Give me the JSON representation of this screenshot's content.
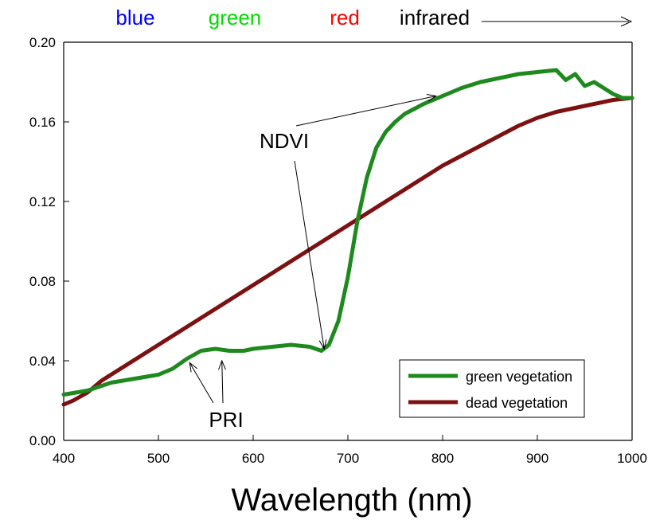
{
  "chart_data": {
    "type": "line",
    "title": "",
    "xlabel": "Wavelength (nm)",
    "ylabel": "",
    "xlim": [
      400,
      1000
    ],
    "ylim": [
      0.0,
      0.2
    ],
    "x_ticks": [
      "400",
      "500",
      "600",
      "700",
      "800",
      "900",
      "1000"
    ],
    "y_ticks": [
      "0.00",
      "0.04",
      "0.08",
      "0.12",
      "0.16",
      "0.20"
    ],
    "grid": false,
    "legend_position": "bottom-right",
    "band_labels": [
      {
        "text": "blue",
        "color": "#0000ff",
        "x": 477
      },
      {
        "text": "green",
        "color": "#00dd00",
        "x": 562
      },
      {
        "text": "red",
        "color": "#ff0000",
        "x": 671
      },
      {
        "text": "infrared",
        "color": "#000000",
        "x": 760
      }
    ],
    "annotations": [
      {
        "text": "NDVI",
        "targets": [
          [
            675,
            0.046
          ],
          [
            793,
            0.173
          ]
        ]
      },
      {
        "text": "PRI",
        "targets": [
          [
            533,
            0.039
          ],
          [
            567,
            0.04
          ]
        ]
      }
    ],
    "series": [
      {
        "name": "green vegetation",
        "color": "#1e8a1e",
        "x": [
          400,
          425,
          450,
          475,
          500,
          515,
          530,
          545,
          560,
          575,
          590,
          600,
          620,
          640,
          660,
          672,
          680,
          690,
          700,
          710,
          720,
          730,
          740,
          750,
          760,
          780,
          800,
          820,
          840,
          860,
          880,
          900,
          920,
          930,
          940,
          950,
          960,
          970,
          980,
          990,
          1000
        ],
        "y": [
          0.023,
          0.025,
          0.029,
          0.031,
          0.033,
          0.036,
          0.041,
          0.045,
          0.046,
          0.045,
          0.045,
          0.046,
          0.047,
          0.048,
          0.047,
          0.045,
          0.048,
          0.06,
          0.082,
          0.11,
          0.132,
          0.147,
          0.155,
          0.16,
          0.164,
          0.169,
          0.173,
          0.177,
          0.18,
          0.182,
          0.184,
          0.185,
          0.186,
          0.181,
          0.184,
          0.178,
          0.18,
          0.177,
          0.174,
          0.172,
          0.172
        ]
      },
      {
        "name": "dead vegetation",
        "color": "#7d1010",
        "x": [
          400,
          410,
          425,
          440,
          460,
          480,
          500,
          520,
          540,
          560,
          580,
          600,
          620,
          640,
          660,
          680,
          700,
          720,
          740,
          760,
          780,
          800,
          820,
          840,
          860,
          880,
          900,
          920,
          940,
          960,
          980,
          1000
        ],
        "y": [
          0.018,
          0.02,
          0.024,
          0.03,
          0.036,
          0.042,
          0.048,
          0.054,
          0.06,
          0.066,
          0.072,
          0.078,
          0.084,
          0.09,
          0.096,
          0.102,
          0.108,
          0.114,
          0.12,
          0.126,
          0.132,
          0.138,
          0.143,
          0.148,
          0.153,
          0.158,
          0.162,
          0.165,
          0.167,
          0.169,
          0.171,
          0.172
        ]
      }
    ]
  }
}
